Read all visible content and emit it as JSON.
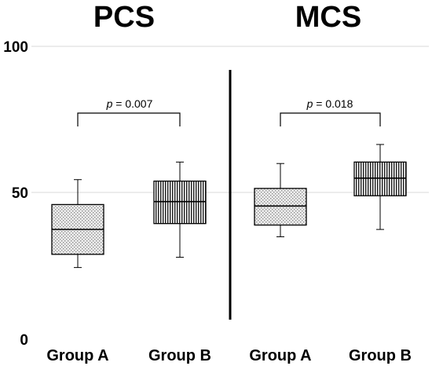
{
  "chart_data": [
    {
      "type": "box",
      "title": "PCS",
      "categories": [
        "Group A",
        "Group B"
      ],
      "boxes": [
        {
          "category": "Group A",
          "min": 24.5,
          "q1": 29,
          "median": 37.5,
          "q3": 46,
          "max": 54.5
        },
        {
          "category": "Group B",
          "min": 28,
          "q1": 39.5,
          "median": 47,
          "q3": 54,
          "max": 60.5
        }
      ],
      "annotation": {
        "label": "p",
        "text": " = 0.007"
      },
      "ylim": [
        0,
        100
      ],
      "yticks": [
        "0",
        "50",
        "100"
      ],
      "grid": true
    },
    {
      "type": "box",
      "title": "MCS",
      "categories": [
        "Group A",
        "Group B"
      ],
      "boxes": [
        {
          "category": "Group A",
          "min": 35,
          "q1": 39,
          "median": 45.5,
          "q3": 51.5,
          "max": 60
        },
        {
          "category": "Group B",
          "min": 37.5,
          "q1": 49,
          "median": 55,
          "q3": 60.5,
          "max": 66.5
        }
      ],
      "annotation": {
        "label": "p",
        "text": " = 0.018"
      },
      "ylim": [
        0,
        100
      ],
      "grid": true
    }
  ]
}
